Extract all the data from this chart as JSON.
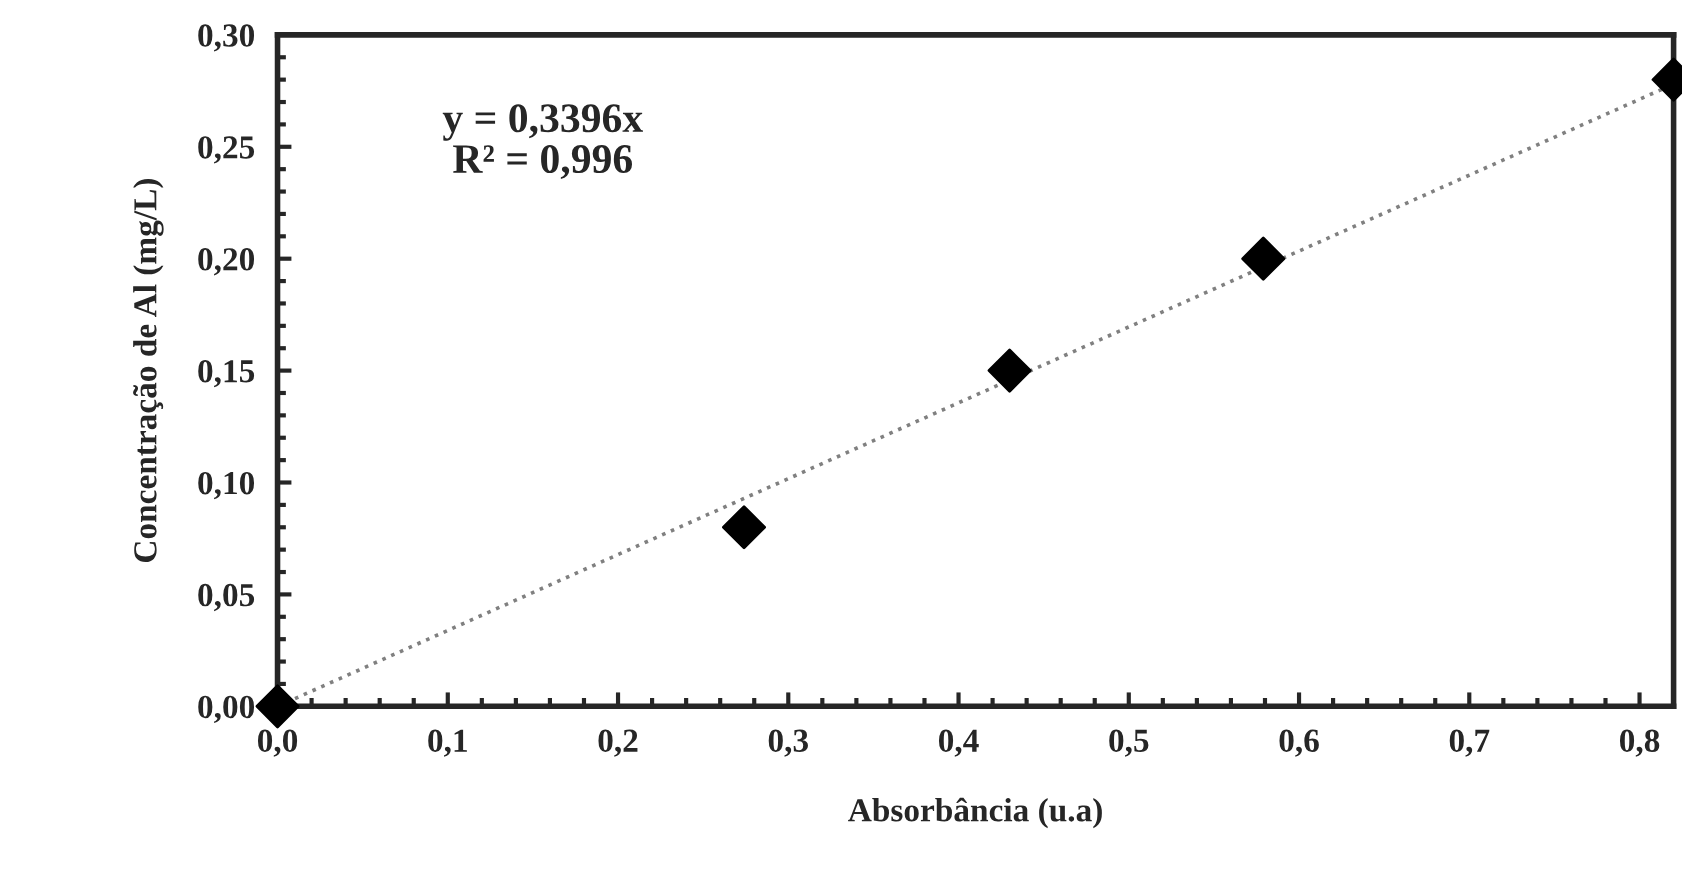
{
  "chart_data": {
    "type": "scatter",
    "xlabel": "Absorbância (u.a)",
    "ylabel": "Concentração de Al (mg/L)",
    "series": [
      {
        "color": "#000000",
        "marker": "diamond",
        "x": [
          0,
          0.274,
          0.43,
          0.579,
          0.82
        ],
        "values": [
          0,
          0.08,
          0.15,
          0.2,
          0.28
        ]
      },
      {
        "type": "line",
        "color": "#808080",
        "line_style": "dotted",
        "marker": "none",
        "x": [
          0,
          0.82
        ],
        "values": [
          0,
          0.278
        ]
      }
    ],
    "annotations": [
      "y = 0,3396x",
      "R² = 0,996"
    ],
    "xlim": [
      0,
      0.82
    ],
    "ylim": [
      0,
      0.3
    ],
    "xticks": [
      {
        "value": 0,
        "label": "0,0"
      },
      {
        "value": 0.1,
        "label": "0,1"
      },
      {
        "value": 0.2,
        "label": "0,2"
      },
      {
        "value": 0.3,
        "label": "0,3"
      },
      {
        "value": 0.4,
        "label": "0,4"
      },
      {
        "value": 0.5,
        "label": "0,5"
      },
      {
        "value": 0.6,
        "label": "0,6"
      },
      {
        "value": 0.7,
        "label": "0,7"
      },
      {
        "value": 0.8,
        "label": "0,8"
      }
    ],
    "yticks": [
      {
        "value": 0,
        "label": "0,00"
      },
      {
        "value": 0.05,
        "label": "0,05"
      },
      {
        "value": 0.1,
        "label": "0,10"
      },
      {
        "value": 0.15,
        "label": "0,15"
      },
      {
        "value": 0.2,
        "label": "0,20"
      },
      {
        "value": 0.25,
        "label": "0,25"
      },
      {
        "value": 0.3,
        "label": "0,30"
      }
    ],
    "grid": false,
    "legend": false
  }
}
